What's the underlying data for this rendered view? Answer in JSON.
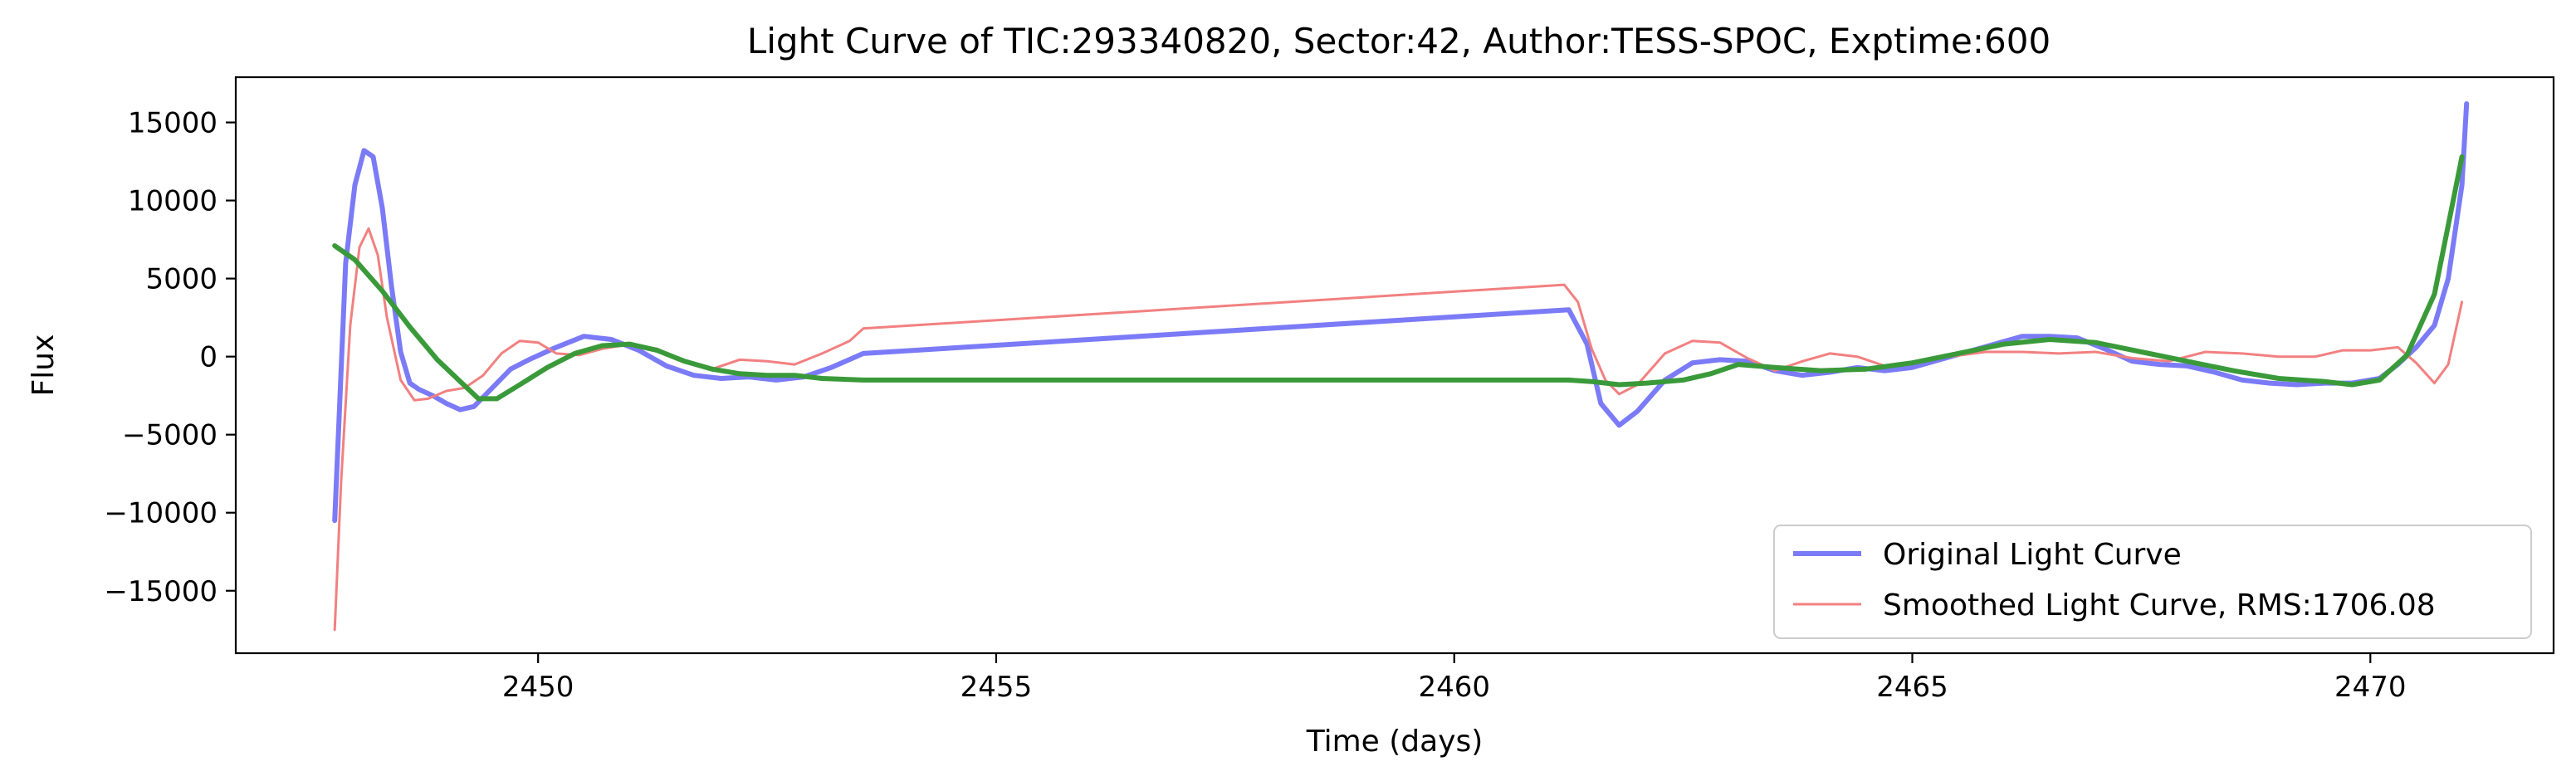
{
  "chart_data": {
    "type": "line",
    "title": "Light Curve of TIC:293340820, Sector:42, Author:TESS-SPOC, Exptime:600",
    "xlabel": "Time (days)",
    "ylabel": "Flux",
    "xlim": [
      2446.7,
      2472.0
    ],
    "ylim": [
      -19000,
      17900
    ],
    "xticks": [
      2450,
      2455,
      2460,
      2465,
      2470
    ],
    "yticks": [
      -15000,
      -10000,
      -5000,
      0,
      5000,
      10000,
      15000
    ],
    "xtick_labels": [
      "2450",
      "2455",
      "2460",
      "2465",
      "2470"
    ],
    "ytick_labels": [
      "−15000",
      "−10000",
      "−5000",
      "0",
      "5000",
      "10000",
      "15000"
    ],
    "grid": false,
    "legend_position": "lower-right",
    "series": [
      {
        "name": "Original Light Curve",
        "color": "#7b7bf7",
        "x": [
          2447.78,
          2447.9,
          2448.0,
          2448.1,
          2448.2,
          2448.3,
          2448.4,
          2448.5,
          2448.6,
          2448.7,
          2448.85,
          2449.0,
          2449.15,
          2449.3,
          2449.5,
          2449.7,
          2449.9,
          2450.2,
          2450.5,
          2450.8,
          2451.1,
          2451.4,
          2451.7,
          2452.0,
          2452.3,
          2452.6,
          2452.9,
          2453.2,
          2453.55,
          2461.25,
          2461.45,
          2461.6,
          2461.8,
          2462.0,
          2462.3,
          2462.6,
          2462.9,
          2463.2,
          2463.5,
          2463.8,
          2464.1,
          2464.4,
          2464.7,
          2465.0,
          2465.3,
          2465.6,
          2465.9,
          2466.2,
          2466.5,
          2466.8,
          2467.1,
          2467.4,
          2467.7,
          2468.0,
          2468.3,
          2468.6,
          2468.9,
          2469.2,
          2469.5,
          2469.8,
          2470.1,
          2470.3,
          2470.5,
          2470.7,
          2470.85,
          2471.0,
          2471.05
        ],
        "y": [
          -10500,
          6000,
          11000,
          13200,
          12800,
          9500,
          4500,
          300,
          -1700,
          -2100,
          -2500,
          -3000,
          -3400,
          -3200,
          -2000,
          -800,
          -200,
          600,
          1300,
          1100,
          400,
          -600,
          -1200,
          -1400,
          -1300,
          -1500,
          -1300,
          -700,
          200,
          3000,
          800,
          -3000,
          -4400,
          -3500,
          -1500,
          -400,
          -200,
          -300,
          -900,
          -1200,
          -1000,
          -700,
          -900,
          -700,
          -200,
          300,
          800,
          1300,
          1300,
          1200,
          500,
          -300,
          -500,
          -600,
          -1000,
          -1500,
          -1700,
          -1800,
          -1700,
          -1700,
          -1400,
          -500,
          600,
          2000,
          5000,
          11000,
          16200
        ]
      },
      {
        "name": "Smoothed Light Curve, RMS:1706.08",
        "color": "#f28080",
        "x": [
          2447.78,
          2447.85,
          2447.95,
          2448.05,
          2448.15,
          2448.25,
          2448.35,
          2448.5,
          2448.65,
          2448.8,
          2449.0,
          2449.2,
          2449.4,
          2449.6,
          2449.8,
          2450.0,
          2450.2,
          2450.45,
          2450.7,
          2451.0,
          2451.3,
          2451.6,
          2451.9,
          2452.2,
          2452.5,
          2452.8,
          2453.1,
          2453.4,
          2453.55,
          2461.2,
          2461.35,
          2461.5,
          2461.65,
          2461.8,
          2462.0,
          2462.3,
          2462.6,
          2462.9,
          2463.2,
          2463.5,
          2463.8,
          2464.1,
          2464.4,
          2464.7,
          2465.0,
          2465.4,
          2465.8,
          2466.2,
          2466.6,
          2467.0,
          2467.4,
          2467.8,
          2468.2,
          2468.6,
          2469.0,
          2469.4,
          2469.7,
          2470.0,
          2470.3,
          2470.5,
          2470.7,
          2470.85,
          2471.0
        ],
        "y": [
          -17500,
          -8000,
          2000,
          7000,
          8200,
          6500,
          2500,
          -1500,
          -2800,
          -2700,
          -2200,
          -2000,
          -1200,
          200,
          1000,
          900,
          200,
          100,
          500,
          800,
          500,
          -300,
          -800,
          -200,
          -300,
          -500,
          200,
          1000,
          1800,
          4600,
          3500,
          500,
          -1500,
          -2400,
          -1800,
          200,
          1000,
          900,
          -100,
          -900,
          -300,
          200,
          0,
          -600,
          -400,
          0,
          300,
          300,
          200,
          300,
          -100,
          -300,
          300,
          200,
          0,
          0,
          400,
          400,
          600,
          -400,
          -1700,
          -500,
          3500
        ]
      },
      {
        "name": "",
        "color": "#3a9a3a",
        "x": [
          2447.78,
          2448.0,
          2448.3,
          2448.6,
          2448.9,
          2449.15,
          2449.35,
          2449.55,
          2449.8,
          2450.1,
          2450.4,
          2450.7,
          2451.0,
          2451.3,
          2451.6,
          2451.9,
          2452.2,
          2452.5,
          2452.8,
          2453.1,
          2453.55,
          2461.25,
          2461.5,
          2461.8,
          2462.1,
          2462.5,
          2462.8,
          2463.1,
          2463.5,
          2464.0,
          2464.5,
          2465.0,
          2465.5,
          2466.0,
          2466.5,
          2467.0,
          2467.5,
          2468.0,
          2468.5,
          2469.0,
          2469.5,
          2469.8,
          2470.1,
          2470.4,
          2470.7,
          2471.0
        ],
        "y": [
          7100,
          6200,
          4200,
          1900,
          -200,
          -1600,
          -2700,
          -2700,
          -1800,
          -700,
          200,
          700,
          800,
          400,
          -300,
          -800,
          -1100,
          -1200,
          -1200,
          -1400,
          -1500,
          -1500,
          -1600,
          -1800,
          -1700,
          -1500,
          -1100,
          -500,
          -700,
          -900,
          -800,
          -400,
          200,
          800,
          1100,
          900,
          300,
          -300,
          -900,
          -1400,
          -1600,
          -1800,
          -1500,
          100,
          4000,
          12800
        ]
      }
    ]
  }
}
